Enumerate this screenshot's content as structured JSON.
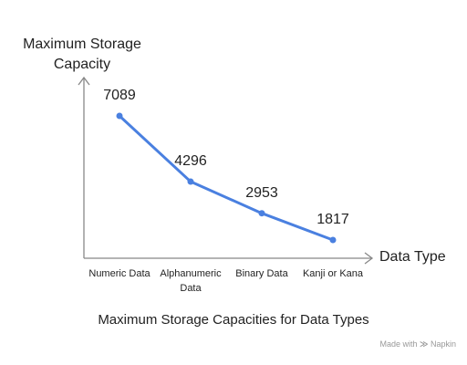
{
  "chart_data": {
    "type": "line",
    "title": "Maximum Storage Capacities for Data Types",
    "y_label": "Maximum Storage Capacity",
    "x_label": "Data Type",
    "categories": [
      "Numeric Data",
      "Alphanumeric Data",
      "Binary Data",
      "Kanji or Kana"
    ],
    "values": [
      7089,
      4296,
      2953,
      1817
    ],
    "color": "#4a80e0",
    "data_labels": true
  },
  "watermark": {
    "prefix": "Made with",
    "brand": "Napkin"
  }
}
